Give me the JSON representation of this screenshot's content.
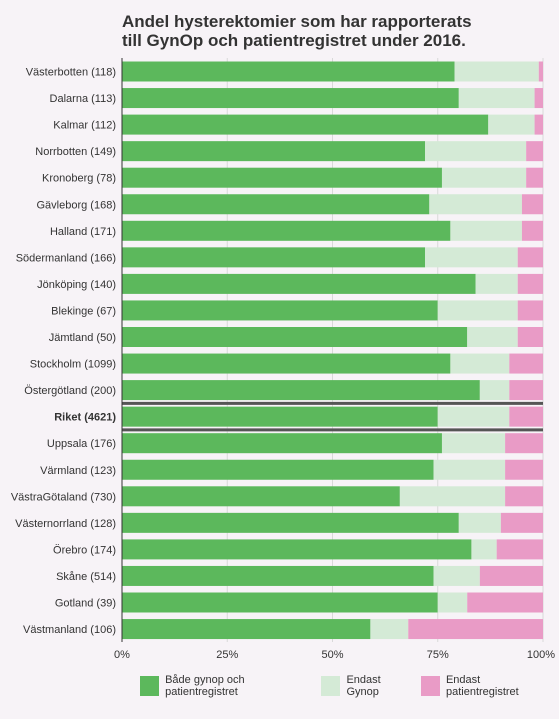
{
  "chart_data": {
    "type": "bar",
    "stacked": true,
    "orientation": "horizontal",
    "title_lines": [
      "Andel hysterektomier som har rapporterats",
      "till GynOp och patientregistret under 2016."
    ],
    "categories": [
      "Västerbotten (118)",
      "Dalarna (113)",
      "Kalmar (112)",
      "Norrbotten (149)",
      "Kronoberg (78)",
      "Gävleborg (168)",
      "Halland (171)",
      "Södermanland (166)",
      "Jönköping (140)",
      "Blekinge (67)",
      "Jämtland (50)",
      "Stockholm (1099)",
      "Östergötland (200)",
      "Riket (4621)",
      "Uppsala (176)",
      "Värmland (123)",
      "VästraGötaland (730)",
      "Västernorrland (128)",
      "Örebro (174)",
      "Skåne (514)",
      "Gotland (39)",
      "Västmanland (106)"
    ],
    "highlight_category": "Riket (4621)",
    "series": [
      {
        "name": "Både gynop och patientregistret",
        "color": "#5cb85c",
        "values": [
          79,
          80,
          87,
          72,
          76,
          73,
          78,
          72,
          84,
          75,
          82,
          78,
          85,
          75,
          76,
          74,
          66,
          80,
          83,
          74,
          75,
          59
        ]
      },
      {
        "name": "Endast Gynop",
        "color": "#d4ead6",
        "values": [
          20,
          18,
          11,
          24,
          20,
          22,
          17,
          22,
          10,
          19,
          12,
          14,
          7,
          17,
          15,
          17,
          25,
          10,
          6,
          11,
          7,
          9
        ]
      },
      {
        "name": "Endast patientregistret",
        "color": "#e99bc6",
        "values": [
          1,
          2,
          2,
          4,
          4,
          5,
          5,
          6,
          6,
          6,
          6,
          8,
          8,
          8,
          9,
          9,
          9,
          10,
          11,
          15,
          18,
          32
        ]
      }
    ],
    "x_ticks": [
      "0%",
      "25%",
      "50%",
      "75%",
      "100%"
    ],
    "xlim": [
      0,
      100
    ],
    "grid": true,
    "legend_position": "bottom"
  }
}
